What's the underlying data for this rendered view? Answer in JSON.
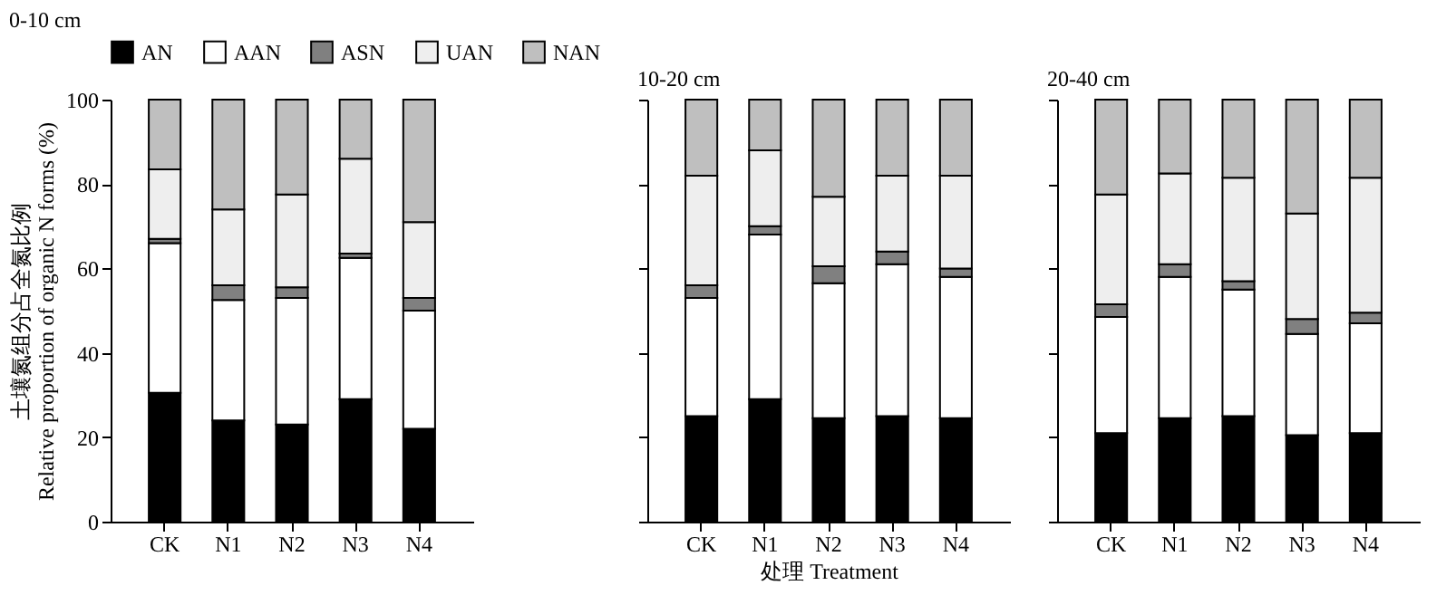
{
  "chart_data": [
    {
      "type": "bar",
      "stacked": true,
      "title": "0-10 cm",
      "ylabel": "土壤氮组分占全氮比例\nRelative proportion of organic N forms (%)",
      "categories": [
        "CK",
        "N1",
        "N2",
        "N3",
        "N4"
      ],
      "ylim": [
        0,
        100
      ],
      "yticks": [
        0,
        20,
        40,
        60,
        80,
        100
      ],
      "legend": "top",
      "grid": false,
      "series": [
        {
          "name": "AN",
          "color": "#000000",
          "values": [
            30.5,
            24,
            23,
            29,
            22
          ]
        },
        {
          "name": "AAN",
          "color": "#ffffff",
          "values": [
            35.5,
            28.5,
            30,
            33.5,
            28
          ]
        },
        {
          "name": "ASN",
          "color": "#808080",
          "values": [
            1,
            3.5,
            2.5,
            1,
            3
          ]
        },
        {
          "name": "UAN",
          "color": "#eeeeee",
          "values": [
            16.5,
            18,
            22,
            22.5,
            18
          ]
        },
        {
          "name": "NAN",
          "color": "#bfbfbf",
          "values": [
            16.5,
            26,
            22.5,
            14,
            29
          ]
        }
      ]
    },
    {
      "type": "bar",
      "stacked": true,
      "title": "10-20 cm",
      "xlabel": "处理 Treatment",
      "categories": [
        "CK",
        "N1",
        "N2",
        "N3",
        "N4"
      ],
      "ylim": [
        0,
        100
      ],
      "yticks": [
        0,
        20,
        40,
        60,
        80,
        100
      ],
      "tick_labels": "x",
      "grid": false,
      "series": [
        {
          "color": "#000000",
          "values": [
            25,
            29,
            24.5,
            25,
            24.5
          ]
        },
        {
          "color": "#ffffff",
          "values": [
            28,
            39,
            32,
            36,
            33.5
          ]
        },
        {
          "color": "#808080",
          "values": [
            3,
            2,
            4,
            3,
            2
          ]
        },
        {
          "color": "#eeeeee",
          "values": [
            26,
            18,
            16.5,
            18,
            22
          ]
        },
        {
          "color": "#bfbfbf",
          "values": [
            18,
            12,
            23,
            18,
            18
          ]
        }
      ]
    },
    {
      "type": "bar",
      "stacked": true,
      "title": "20-40 cm",
      "categories": [
        "CK",
        "N1",
        "N2",
        "N3",
        "N4"
      ],
      "ylim": [
        0,
        100
      ],
      "yticks": [
        0,
        20,
        40,
        60,
        80,
        100
      ],
      "tick_labels": "x",
      "grid": false,
      "series": [
        {
          "color": "#000000",
          "values": [
            21,
            24.5,
            25,
            20.5,
            21
          ]
        },
        {
          "color": "#ffffff",
          "values": [
            27.5,
            33.5,
            30,
            24,
            26
          ]
        },
        {
          "color": "#808080",
          "values": [
            3,
            3,
            2,
            3.5,
            2.5
          ]
        },
        {
          "color": "#eeeeee",
          "values": [
            26,
            21.5,
            24.5,
            25,
            32
          ]
        },
        {
          "color": "#bfbfbf",
          "values": [
            22.5,
            17.5,
            18.5,
            27,
            18.5
          ]
        }
      ]
    }
  ]
}
